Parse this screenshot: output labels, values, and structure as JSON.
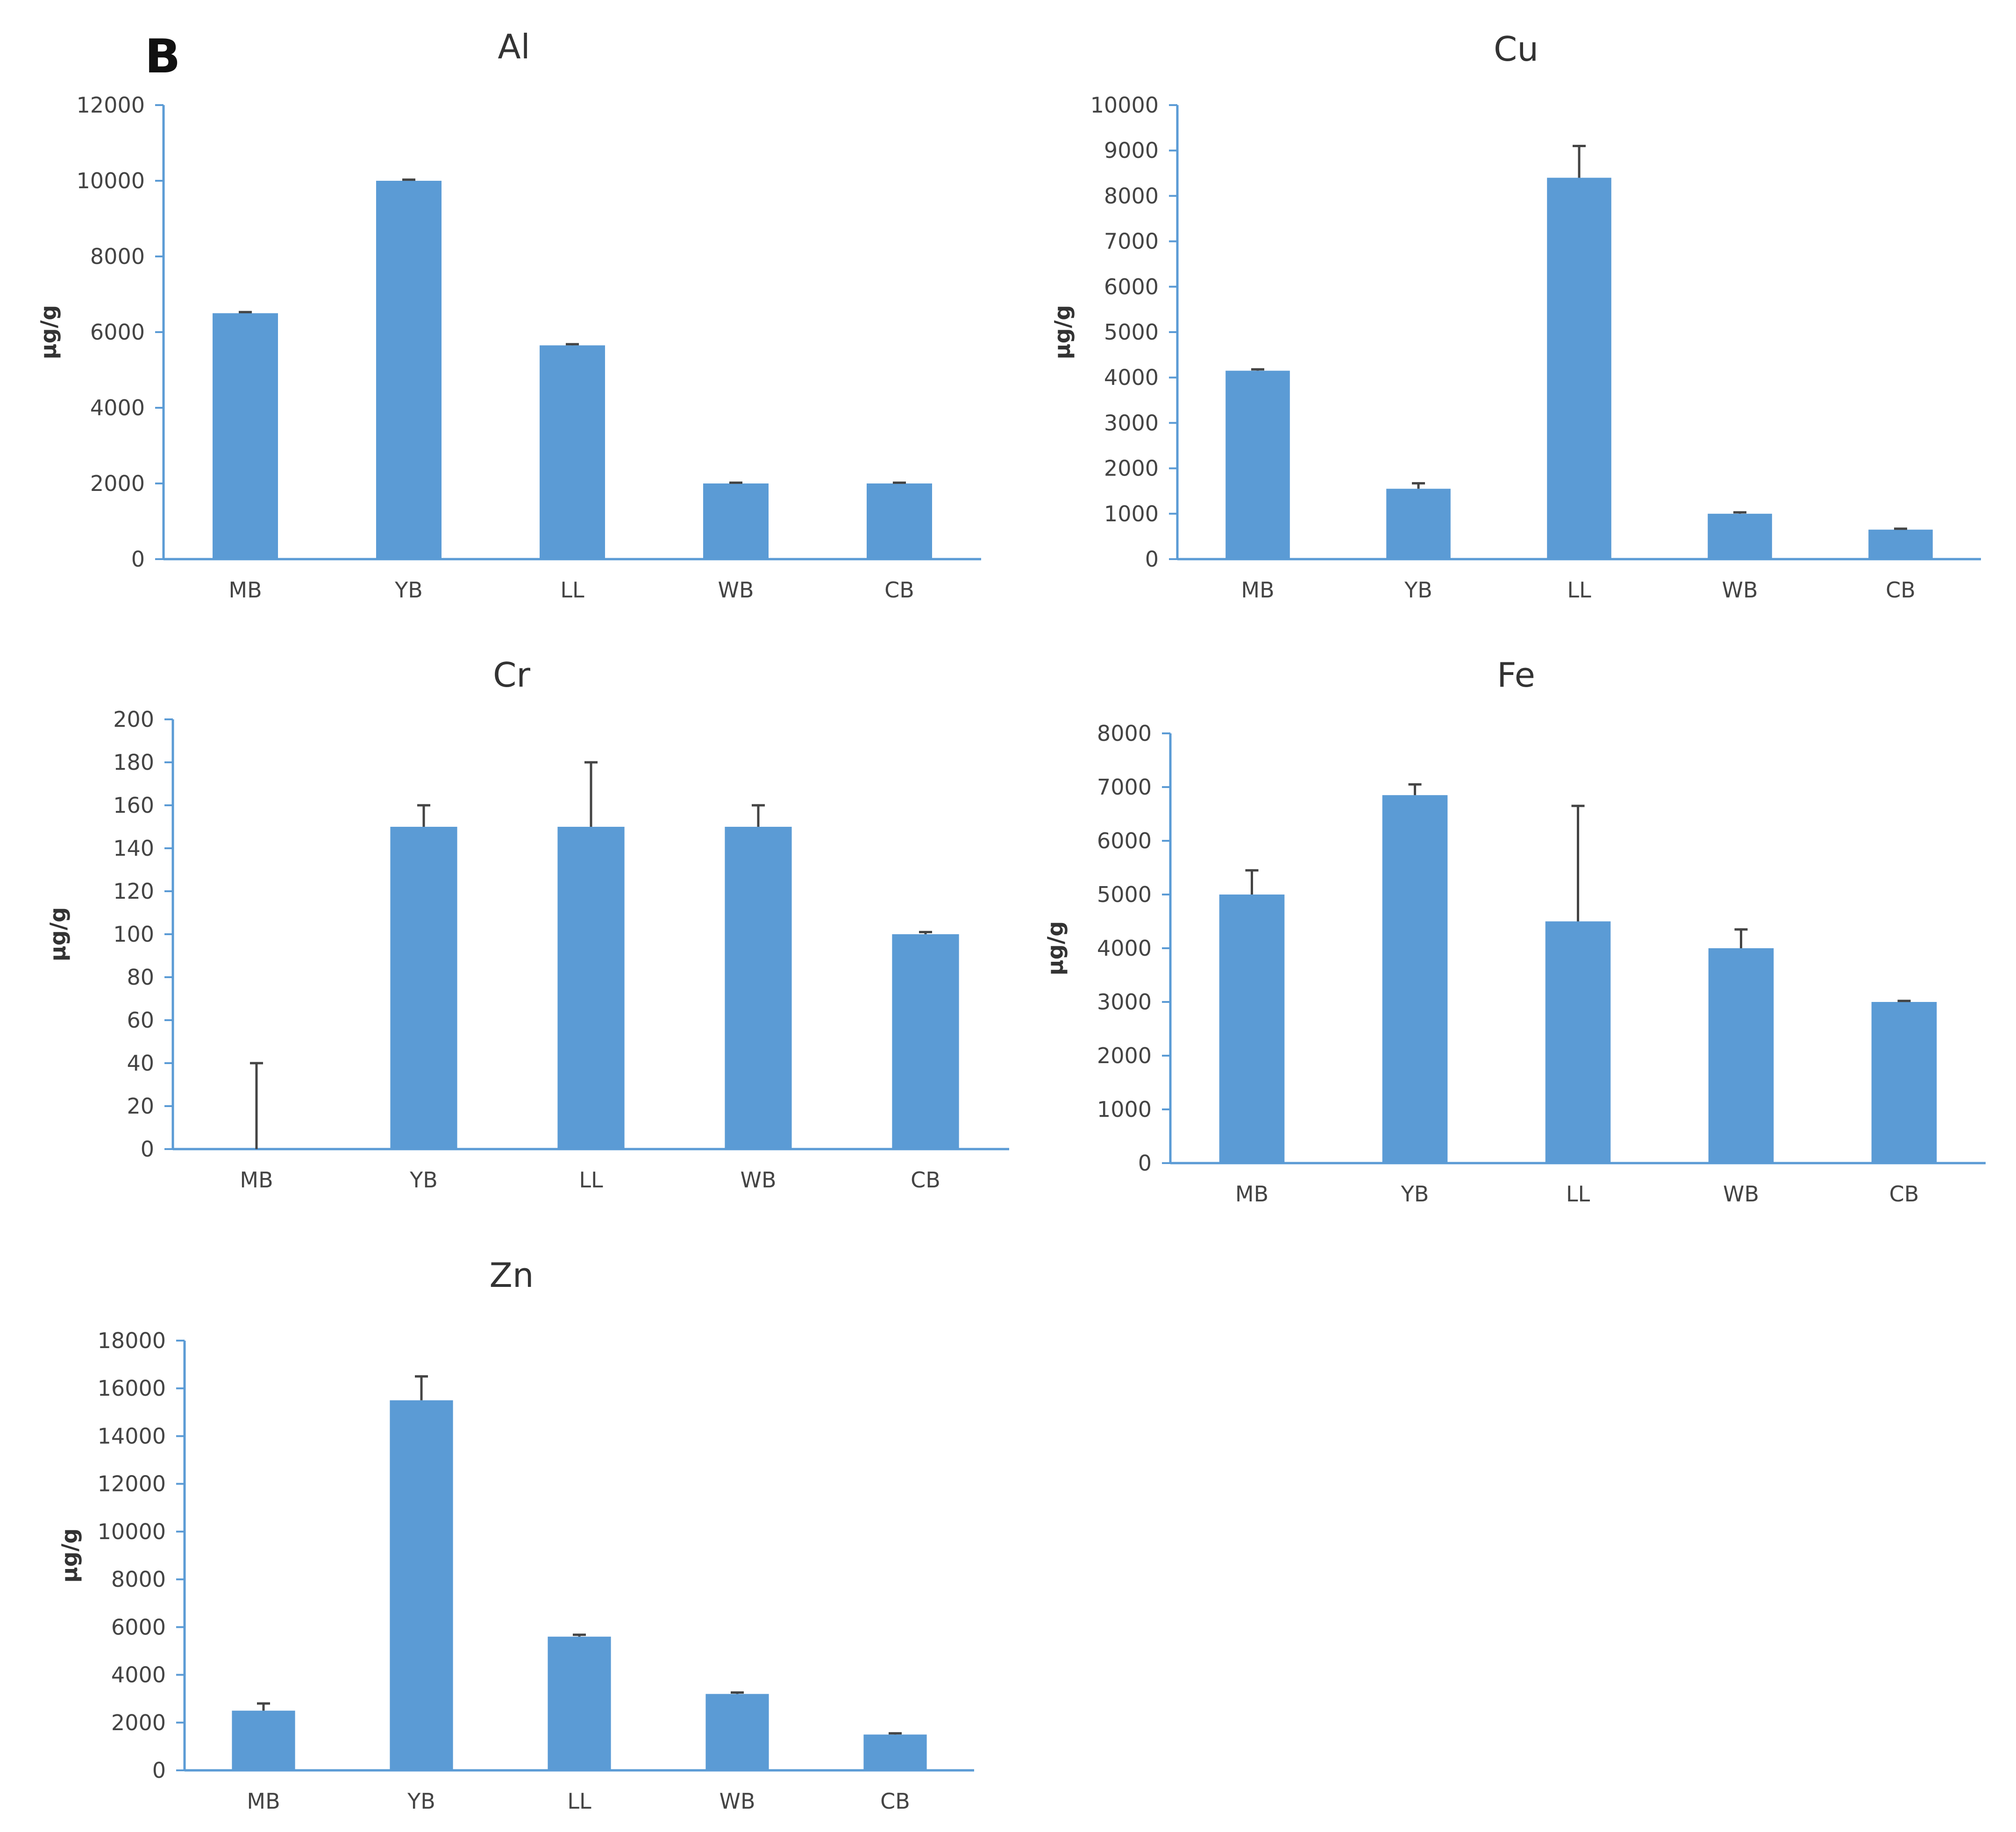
{
  "panel_label": "B",
  "colors": {
    "bar": "#5b9bd5",
    "axis": "#5b9bd5",
    "error": "#444444"
  },
  "chart_data": [
    {
      "type": "bar",
      "title": "Al",
      "ylabel": "µg/g",
      "categories": [
        "MB",
        "YB",
        "LL",
        "WB",
        "CB"
      ],
      "values": [
        6500,
        10000,
        5650,
        2000,
        2000
      ],
      "errors": [
        30,
        30,
        30,
        20,
        20
      ],
      "ylim": [
        0,
        12000
      ],
      "yticks": [
        "0",
        "2000",
        "4000",
        "6000",
        "8000",
        "10000",
        "12000"
      ]
    },
    {
      "type": "bar",
      "title": "Cu",
      "ylabel": "µg/g",
      "categories": [
        "MB",
        "YB",
        "LL",
        "WB",
        "CB"
      ],
      "values": [
        4150,
        1550,
        8400,
        1000,
        650
      ],
      "errors": [
        30,
        120,
        700,
        30,
        20
      ],
      "ylim": [
        0,
        10000
      ],
      "yticks": [
        "0",
        "1000",
        "2000",
        "3000",
        "4000",
        "5000",
        "6000",
        "7000",
        "8000",
        "9000",
        "10000"
      ]
    },
    {
      "type": "bar",
      "title": "Cr",
      "ylabel": "µg/g",
      "categories": [
        "MB",
        "YB",
        "LL",
        "WB",
        "CB"
      ],
      "values": [
        0,
        150,
        150,
        150,
        100
      ],
      "errors": [
        40,
        10,
        30,
        10,
        1
      ],
      "ylim": [
        0,
        200
      ],
      "yticks": [
        "0",
        "20",
        "40",
        "60",
        "80",
        "100",
        "120",
        "140",
        "160",
        "180",
        "200"
      ]
    },
    {
      "type": "bar",
      "title": "Fe",
      "ylabel": "µg/g",
      "categories": [
        "MB",
        "YB",
        "LL",
        "WB",
        "CB"
      ],
      "values": [
        5000,
        6850,
        4500,
        4000,
        3000
      ],
      "errors": [
        450,
        200,
        2150,
        350,
        20
      ],
      "ylim": [
        0,
        8000
      ],
      "yticks": [
        "0",
        "1000",
        "2000",
        "3000",
        "4000",
        "5000",
        "6000",
        "7000",
        "8000"
      ]
    },
    {
      "type": "bar",
      "title": "Zn",
      "ylabel": "µg/g",
      "categories": [
        "MB",
        "YB",
        "LL",
        "WB",
        "CB"
      ],
      "values": [
        2500,
        15500,
        5600,
        3200,
        1500
      ],
      "errors": [
        300,
        1000,
        80,
        60,
        50
      ],
      "ylim": [
        0,
        18000
      ],
      "yticks": [
        "0",
        "2000",
        "4000",
        "6000",
        "8000",
        "10000",
        "12000",
        "14000",
        "16000",
        "18000"
      ]
    }
  ]
}
